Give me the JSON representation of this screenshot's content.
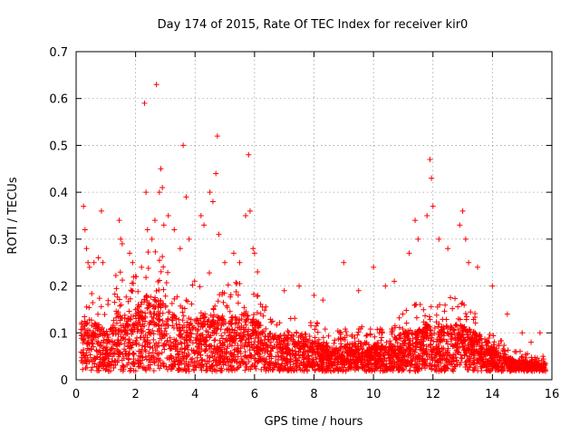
{
  "chart_data": {
    "type": "scatter",
    "title": "Day 174 of 2015, Rate Of TEC Index for receiver kir0",
    "xlabel": "GPS time / hours",
    "ylabel": "ROTI / TECUs",
    "xlim": [
      0,
      16
    ],
    "ylim": [
      0,
      0.7
    ],
    "x_ticks": [
      0,
      2,
      4,
      6,
      8,
      10,
      12,
      14,
      16
    ],
    "y_ticks": [
      0,
      0.1,
      0.2,
      0.3,
      0.4,
      0.5,
      0.6,
      0.7
    ],
    "x_tick_labels": [
      "0",
      "2",
      "4",
      "6",
      "8",
      "10",
      "12",
      "14",
      "16"
    ],
    "y_tick_labels": [
      "0",
      "0.1",
      "0.2",
      "0.3",
      "0.4",
      "0.5",
      "0.6",
      "0.7"
    ],
    "grid": true,
    "marker": "+",
    "color": "#ff0000",
    "series": [
      {
        "name": "kir0",
        "points": [
          [
            0.25,
            0.37
          ],
          [
            0.3,
            0.32
          ],
          [
            0.35,
            0.28
          ],
          [
            0.4,
            0.25
          ],
          [
            0.45,
            0.24
          ],
          [
            0.6,
            0.25
          ],
          [
            0.75,
            0.26
          ],
          [
            0.85,
            0.36
          ],
          [
            0.9,
            0.25
          ],
          [
            1.45,
            0.34
          ],
          [
            1.5,
            0.3
          ],
          [
            1.55,
            0.29
          ],
          [
            1.8,
            0.27
          ],
          [
            1.9,
            0.25
          ],
          [
            2.0,
            0.22
          ],
          [
            2.2,
            0.24
          ],
          [
            2.3,
            0.59
          ],
          [
            2.35,
            0.4
          ],
          [
            2.4,
            0.32
          ],
          [
            2.55,
            0.3
          ],
          [
            2.65,
            0.34
          ],
          [
            2.7,
            0.63
          ],
          [
            2.8,
            0.4
          ],
          [
            2.85,
            0.45
          ],
          [
            2.9,
            0.41
          ],
          [
            2.95,
            0.33
          ],
          [
            3.1,
            0.35
          ],
          [
            3.3,
            0.32
          ],
          [
            3.5,
            0.28
          ],
          [
            3.6,
            0.5
          ],
          [
            3.7,
            0.39
          ],
          [
            3.8,
            0.3
          ],
          [
            4.2,
            0.35
          ],
          [
            4.3,
            0.33
          ],
          [
            4.5,
            0.4
          ],
          [
            4.6,
            0.38
          ],
          [
            4.7,
            0.44
          ],
          [
            4.75,
            0.52
          ],
          [
            4.8,
            0.31
          ],
          [
            5.0,
            0.25
          ],
          [
            5.3,
            0.27
          ],
          [
            5.5,
            0.25
          ],
          [
            5.7,
            0.35
          ],
          [
            5.8,
            0.48
          ],
          [
            5.85,
            0.36
          ],
          [
            5.95,
            0.28
          ],
          [
            6.0,
            0.27
          ],
          [
            6.1,
            0.23
          ],
          [
            7.0,
            0.19
          ],
          [
            7.5,
            0.2
          ],
          [
            8.0,
            0.18
          ],
          [
            8.3,
            0.17
          ],
          [
            9.0,
            0.25
          ],
          [
            9.5,
            0.19
          ],
          [
            10.0,
            0.24
          ],
          [
            10.4,
            0.2
          ],
          [
            10.7,
            0.21
          ],
          [
            11.2,
            0.27
          ],
          [
            11.4,
            0.34
          ],
          [
            11.5,
            0.3
          ],
          [
            11.8,
            0.35
          ],
          [
            11.9,
            0.47
          ],
          [
            11.95,
            0.43
          ],
          [
            12.0,
            0.37
          ],
          [
            12.2,
            0.3
          ],
          [
            12.5,
            0.28
          ],
          [
            12.9,
            0.33
          ],
          [
            13.0,
            0.36
          ],
          [
            13.1,
            0.3
          ],
          [
            13.2,
            0.25
          ],
          [
            13.5,
            0.24
          ],
          [
            14.0,
            0.2
          ],
          [
            14.5,
            0.14
          ],
          [
            15.0,
            0.1
          ],
          [
            15.3,
            0.08
          ],
          [
            15.6,
            0.1
          ],
          [
            15.7,
            0.05
          ]
        ],
        "envelope": [
          [
            0.2,
            0.06,
            0.18
          ],
          [
            0.6,
            0.05,
            0.2
          ],
          [
            1.0,
            0.04,
            0.16
          ],
          [
            1.4,
            0.05,
            0.24
          ],
          [
            1.8,
            0.05,
            0.2
          ],
          [
            2.2,
            0.04,
            0.28
          ],
          [
            2.6,
            0.06,
            0.3
          ],
          [
            3.0,
            0.05,
            0.26
          ],
          [
            3.4,
            0.04,
            0.2
          ],
          [
            3.8,
            0.03,
            0.22
          ],
          [
            4.2,
            0.05,
            0.2
          ],
          [
            4.6,
            0.05,
            0.24
          ],
          [
            5.0,
            0.04,
            0.2
          ],
          [
            5.4,
            0.04,
            0.22
          ],
          [
            5.8,
            0.06,
            0.24
          ],
          [
            6.2,
            0.05,
            0.17
          ],
          [
            6.6,
            0.05,
            0.14
          ],
          [
            7.0,
            0.05,
            0.13
          ],
          [
            7.4,
            0.05,
            0.14
          ],
          [
            7.8,
            0.04,
            0.13
          ],
          [
            8.2,
            0.03,
            0.12
          ],
          [
            8.6,
            0.03,
            0.1
          ],
          [
            9.0,
            0.03,
            0.11
          ],
          [
            9.4,
            0.03,
            0.12
          ],
          [
            9.8,
            0.03,
            0.12
          ],
          [
            10.2,
            0.03,
            0.11
          ],
          [
            10.6,
            0.04,
            0.12
          ],
          [
            11.0,
            0.04,
            0.15
          ],
          [
            11.4,
            0.05,
            0.16
          ],
          [
            11.8,
            0.05,
            0.17
          ],
          [
            12.2,
            0.05,
            0.16
          ],
          [
            12.6,
            0.05,
            0.18
          ],
          [
            13.0,
            0.05,
            0.17
          ],
          [
            13.4,
            0.05,
            0.15
          ],
          [
            13.8,
            0.04,
            0.12
          ],
          [
            14.2,
            0.03,
            0.09
          ],
          [
            14.6,
            0.02,
            0.07
          ],
          [
            15.0,
            0.02,
            0.06
          ],
          [
            15.4,
            0.02,
            0.05
          ],
          [
            15.8,
            0.02,
            0.05
          ]
        ]
      }
    ]
  }
}
